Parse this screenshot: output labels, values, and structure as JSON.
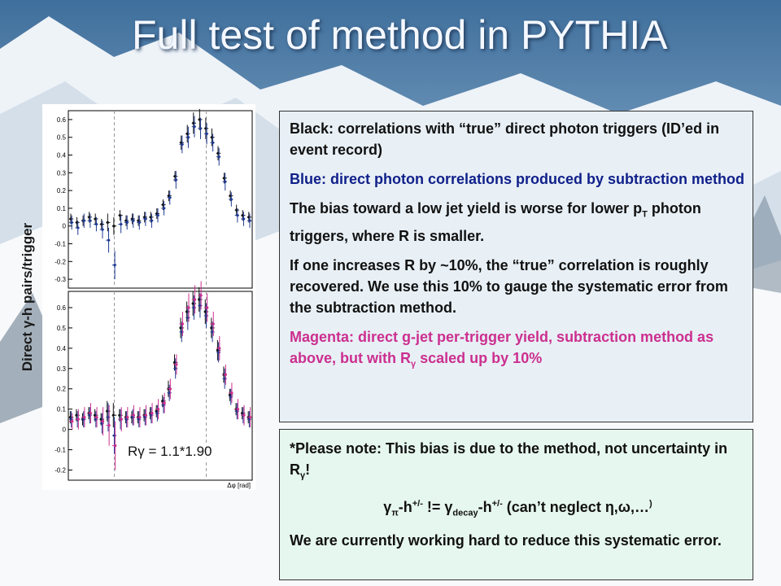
{
  "slide": {
    "title": "Full test of method in PYTHIA",
    "y_axis_label": "Direct γ-h pairs/trigger",
    "r_annotation": "Rγ = 1.1*1.90"
  },
  "box1": {
    "p1": "Black: correlations with “true” direct photon triggers (ID’ed in event record)",
    "p2": "Blue: direct photon correlations produced by subtraction method",
    "p3_a": "The bias toward a low jet yield is worse for lower p",
    "p3_sub": "T",
    "p3_b": " photon triggers, where R is smaller.",
    "p4": "If one increases R by ~10%, the “true” correlation is roughly recovered.  We use this 10% to gauge the systematic error from the subtraction method.",
    "p5_a": "Magenta: direct g-jet per-trigger yield, subtraction method as above, but with R",
    "p5_sub": "γ",
    "p5_b": " scaled up by 10%"
  },
  "box2": {
    "p1_a": "*Please note: This bias is due to the method, not uncertainty in R",
    "p1_sub": "γ",
    "p1_b": "!",
    "p2_g1": "γ",
    "p2_pi": "π",
    "p2_h": "-h",
    "p2_pm": "+/-",
    "p2_neq": " != ",
    "p2_g2": "γ",
    "p2_decay": "decay",
    "p2_h2": "-h",
    "p2_pm2": "+/-",
    "p2_tail": " (can’t neglect ",
    "p2_greek": "η,ω,…",
    "p2_close": ")",
    "p3": "We are currently working hard to reduce this systematic error."
  },
  "colors": {
    "black": "#111111",
    "blue": "#1f3a93",
    "magenta": "#cc2f8f"
  },
  "chart_data": [
    {
      "type": "scatter",
      "title": "",
      "xlabel": "Δφ [rad]",
      "ylabel": "Direct γ-h pairs/trigger",
      "xlim": [
        -1.57,
        4.71
      ],
      "ylim": [
        -0.35,
        0.65
      ],
      "yticks": [
        -0.3,
        -0.2,
        -0.1,
        0,
        0.1,
        0.2,
        0.3,
        0.4,
        0.5,
        0.6
      ],
      "reference_lines_x": [
        0,
        3.1416
      ],
      "x": [
        -1.47,
        -1.26,
        -1.05,
        -0.84,
        -0.63,
        -0.42,
        -0.21,
        0.0,
        0.21,
        0.42,
        0.63,
        0.84,
        1.05,
        1.26,
        1.47,
        1.68,
        1.88,
        2.09,
        2.3,
        2.51,
        2.72,
        2.93,
        3.14,
        3.35,
        3.56,
        3.77,
        3.98,
        4.19,
        4.4,
        4.61
      ],
      "series": [
        {
          "name": "",
          "color": "#111111",
          "values": [
            0.04,
            0.02,
            0.03,
            0.05,
            0.04,
            0.01,
            0.02,
            0.0,
            0.06,
            0.03,
            0.04,
            0.03,
            0.05,
            0.05,
            0.07,
            0.12,
            0.17,
            0.28,
            0.47,
            0.52,
            0.58,
            0.6,
            0.55,
            0.5,
            0.41,
            0.27,
            0.17,
            0.09,
            0.06,
            0.05
          ],
          "errors": [
            0.03,
            0.03,
            0.03,
            0.03,
            0.03,
            0.03,
            0.05,
            0.05,
            0.03,
            0.03,
            0.03,
            0.03,
            0.03,
            0.03,
            0.03,
            0.03,
            0.03,
            0.03,
            0.04,
            0.05,
            0.06,
            0.06,
            0.06,
            0.05,
            0.04,
            0.03,
            0.03,
            0.03,
            0.03,
            0.03
          ]
        },
        {
          "name": "",
          "color": "#1f3a93",
          "values": [
            0.02,
            -0.01,
            0.03,
            0.03,
            0.01,
            -0.02,
            -0.08,
            -0.22,
            0.01,
            0.02,
            0.03,
            0.02,
            0.04,
            0.03,
            0.06,
            0.1,
            0.16,
            0.26,
            0.46,
            0.5,
            0.56,
            0.55,
            0.52,
            0.47,
            0.39,
            0.25,
            0.15,
            0.06,
            0.04,
            0.03
          ],
          "errors": [
            0.04,
            0.04,
            0.04,
            0.04,
            0.04,
            0.05,
            0.07,
            0.08,
            0.05,
            0.04,
            0.04,
            0.04,
            0.04,
            0.04,
            0.04,
            0.04,
            0.04,
            0.05,
            0.05,
            0.06,
            0.06,
            0.06,
            0.06,
            0.05,
            0.05,
            0.05,
            0.04,
            0.04,
            0.04,
            0.04
          ]
        }
      ]
    },
    {
      "type": "scatter",
      "title": "",
      "xlabel": "Δφ [rad]",
      "ylabel": "Direct γ-h pairs/trigger",
      "xlim": [
        -1.57,
        4.71
      ],
      "ylim": [
        -0.25,
        0.68
      ],
      "yticks": [
        -0.2,
        -0.1,
        0,
        0.1,
        0.2,
        0.3,
        0.4,
        0.5,
        0.6
      ],
      "reference_lines_x": [
        0,
        3.1416
      ],
      "x": [
        -1.47,
        -1.26,
        -1.05,
        -0.84,
        -0.63,
        -0.42,
        -0.21,
        0.0,
        0.21,
        0.42,
        0.63,
        0.84,
        1.05,
        1.26,
        1.47,
        1.68,
        1.88,
        2.09,
        2.3,
        2.51,
        2.72,
        2.93,
        3.14,
        3.35,
        3.56,
        3.77,
        3.98,
        4.19,
        4.4,
        4.61
      ],
      "series": [
        {
          "name": "",
          "color": "#111111",
          "values": [
            0.06,
            0.07,
            0.05,
            0.08,
            0.07,
            0.05,
            0.09,
            0.07,
            0.07,
            0.06,
            0.06,
            0.06,
            0.07,
            0.08,
            0.09,
            0.14,
            0.2,
            0.33,
            0.5,
            0.58,
            0.62,
            0.64,
            0.58,
            0.5,
            0.39,
            0.27,
            0.17,
            0.1,
            0.08,
            0.06
          ],
          "errors": [
            0.03,
            0.03,
            0.03,
            0.03,
            0.03,
            0.03,
            0.05,
            0.06,
            0.03,
            0.03,
            0.03,
            0.03,
            0.03,
            0.03,
            0.03,
            0.03,
            0.04,
            0.04,
            0.05,
            0.05,
            0.06,
            0.06,
            0.06,
            0.05,
            0.05,
            0.04,
            0.03,
            0.03,
            0.03,
            0.03
          ]
        },
        {
          "name": "",
          "color": "#1f3a93",
          "values": [
            0.05,
            0.05,
            0.05,
            0.07,
            0.05,
            0.03,
            0.06,
            -0.03,
            0.05,
            0.05,
            0.06,
            0.05,
            0.06,
            0.07,
            0.08,
            0.12,
            0.18,
            0.3,
            0.48,
            0.55,
            0.6,
            0.61,
            0.56,
            0.48,
            0.38,
            0.25,
            0.16,
            0.09,
            0.07,
            0.05
          ],
          "errors": [
            0.04,
            0.04,
            0.04,
            0.04,
            0.04,
            0.05,
            0.07,
            0.09,
            0.05,
            0.04,
            0.04,
            0.04,
            0.04,
            0.04,
            0.04,
            0.04,
            0.04,
            0.05,
            0.05,
            0.06,
            0.06,
            0.06,
            0.06,
            0.05,
            0.05,
            0.05,
            0.04,
            0.04,
            0.04,
            0.04
          ]
        },
        {
          "name": "",
          "color": "#cc2f8f",
          "values": [
            0.04,
            0.05,
            0.06,
            0.08,
            0.06,
            0.04,
            0.02,
            -0.08,
            0.05,
            0.06,
            0.07,
            0.06,
            0.07,
            0.08,
            0.1,
            0.13,
            0.2,
            0.32,
            0.52,
            0.6,
            0.64,
            0.66,
            0.6,
            0.52,
            0.4,
            0.27,
            0.18,
            0.1,
            0.07,
            0.06
          ],
          "errors": [
            0.04,
            0.05,
            0.05,
            0.05,
            0.05,
            0.07,
            0.1,
            0.12,
            0.06,
            0.05,
            0.05,
            0.05,
            0.05,
            0.05,
            0.05,
            0.05,
            0.05,
            0.05,
            0.06,
            0.07,
            0.07,
            0.07,
            0.07,
            0.06,
            0.06,
            0.05,
            0.05,
            0.05,
            0.05,
            0.05
          ]
        }
      ]
    }
  ]
}
